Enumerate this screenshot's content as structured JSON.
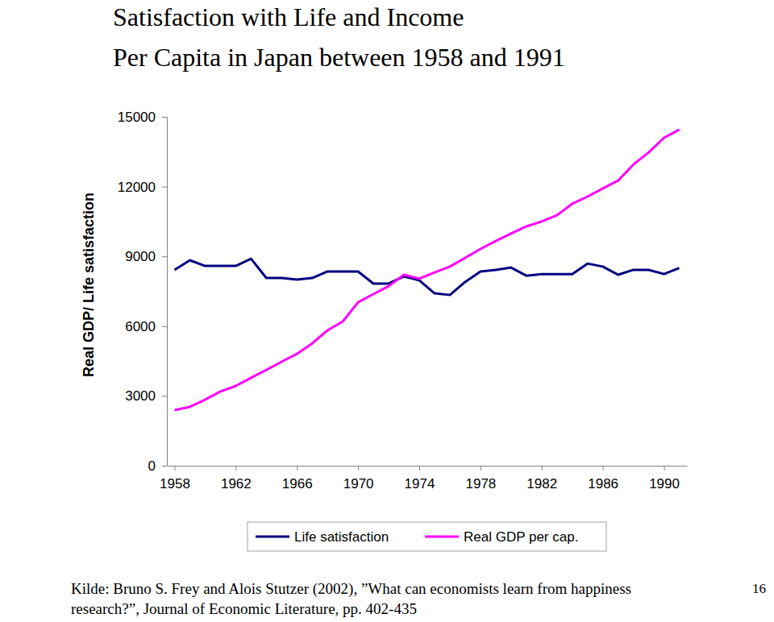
{
  "chart_data": {
    "type": "line",
    "title": [
      "Satisfaction with Life and Income",
      "Per Capita in Japan between 1958 and 1991"
    ],
    "y_label": "Real GDP/ Life satisfaction",
    "x": [
      1958,
      1959,
      1960,
      1961,
      1962,
      1963,
      1964,
      1965,
      1966,
      1967,
      1968,
      1969,
      1970,
      1971,
      1972,
      1973,
      1974,
      1975,
      1976,
      1977,
      1978,
      1979,
      1980,
      1981,
      1982,
      1983,
      1984,
      1985,
      1986,
      1987,
      1988,
      1989,
      1990,
      1991
    ],
    "series": [
      {
        "name": "Life satisfaction",
        "color": "#000080",
        "values": [
          8417,
          8833,
          8590,
          8590,
          8590,
          8900,
          8070,
          8070,
          8000,
          8070,
          8350,
          8350,
          8350,
          7830,
          7830,
          8140,
          7970,
          7410,
          7340,
          7900,
          8350,
          8420,
          8520,
          8170,
          8240,
          8240,
          8240,
          8690,
          8560,
          8210,
          8420,
          8420,
          8240,
          8500
        ]
      },
      {
        "name": "Real GDP per cap.",
        "color": "#ff00ff",
        "values": [
          2390,
          2530,
          2840,
          3190,
          3430,
          3780,
          4120,
          4470,
          4810,
          5260,
          5820,
          6200,
          7030,
          7380,
          7720,
          8210,
          8040,
          8310,
          8560,
          8940,
          9320,
          9660,
          9980,
          10290,
          10500,
          10770,
          11260,
          11570,
          11920,
          12260,
          12950,
          13470,
          14100,
          14450
        ]
      }
    ],
    "xlim": [
      1957.5,
      1991.5
    ],
    "xticks": [
      1958,
      1962,
      1966,
      1970,
      1974,
      1978,
      1982,
      1986,
      1990
    ],
    "ylim": [
      0,
      15000
    ],
    "yticks": [
      0,
      3000,
      6000,
      9000,
      12000,
      15000
    ],
    "grid": false,
    "legend": "bottom",
    "source": [
      "Kilde: Bruno S. Frey and Alois Stutzer (2002), ”What can economists learn from happiness",
      "research?”, Journal of Economic Literature, pp. 402-435"
    ],
    "page_number": 16
  }
}
